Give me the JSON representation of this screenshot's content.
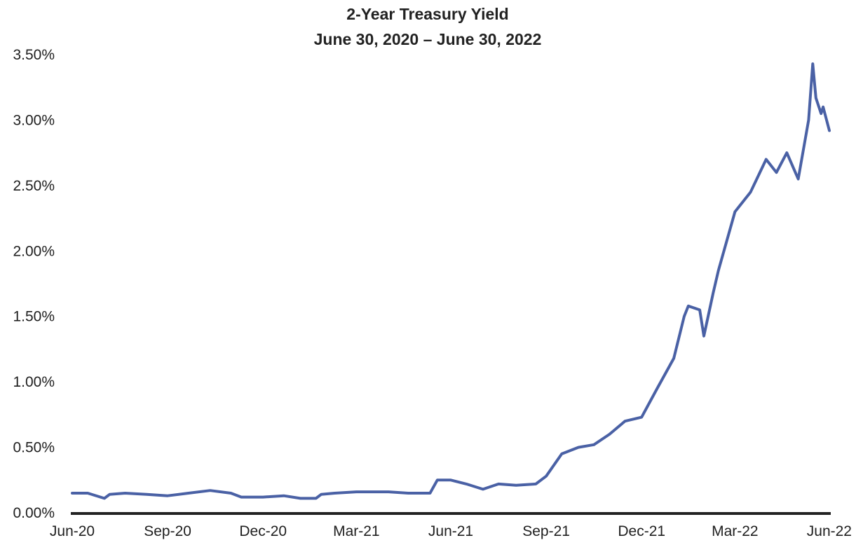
{
  "chart_data": {
    "type": "line",
    "title": "2-Year Treasury Yield",
    "subtitle": "June 30, 2020 – June 30, 2022",
    "xlabel": "",
    "ylabel": "",
    "x_tick_labels": [
      "Jun-20",
      "Sep-20",
      "Dec-20",
      "Mar-21",
      "Jun-21",
      "Sep-21",
      "Dec-21",
      "Mar-22",
      "Jun-22"
    ],
    "x_ticks": [
      "2020-06-30",
      "2020-09-30",
      "2020-12-31",
      "2021-03-31",
      "2021-06-30",
      "2021-09-30",
      "2021-12-31",
      "2022-03-31",
      "2022-06-30"
    ],
    "y_tick_labels": [
      "0.00%",
      "0.50%",
      "1.00%",
      "1.50%",
      "2.00%",
      "2.50%",
      "3.00%",
      "3.50%"
    ],
    "y_ticks": [
      0,
      0.5,
      1.0,
      1.5,
      2.0,
      2.5,
      3.0,
      3.5
    ],
    "xlim": [
      "2020-06-30",
      "2022-06-30"
    ],
    "ylim": [
      0,
      3.5
    ],
    "grid": false,
    "line_color": "#4a61a5",
    "axis_color": "#222222",
    "series": [
      {
        "x": [
          "2020-06-30",
          "2020-07-15",
          "2020-07-31",
          "2020-08-05",
          "2020-08-20",
          "2020-09-10",
          "2020-09-30",
          "2020-10-20",
          "2020-11-10",
          "2020-11-30",
          "2020-12-10",
          "2020-12-31",
          "2021-01-20",
          "2021-02-05",
          "2021-02-20",
          "2021-02-25",
          "2021-03-10",
          "2021-03-31",
          "2021-04-15",
          "2021-05-01",
          "2021-05-20",
          "2021-06-10",
          "2021-06-17",
          "2021-06-30",
          "2021-07-15",
          "2021-07-31",
          "2021-08-15",
          "2021-09-01",
          "2021-09-20",
          "2021-09-30",
          "2021-10-15",
          "2021-10-31",
          "2021-11-15",
          "2021-11-30",
          "2021-12-15",
          "2021-12-31",
          "2022-01-15",
          "2022-01-31",
          "2022-02-10",
          "2022-02-14",
          "2022-02-25",
          "2022-03-01",
          "2022-03-10",
          "2022-03-15",
          "2022-03-31",
          "2022-04-15",
          "2022-04-30",
          "2022-05-10",
          "2022-05-20",
          "2022-05-31",
          "2022-06-10",
          "2022-06-14",
          "2022-06-17",
          "2022-06-22",
          "2022-06-24",
          "2022-06-30"
        ],
        "values": [
          0.15,
          0.15,
          0.11,
          0.14,
          0.15,
          0.14,
          0.13,
          0.15,
          0.17,
          0.15,
          0.12,
          0.12,
          0.13,
          0.11,
          0.11,
          0.14,
          0.15,
          0.16,
          0.16,
          0.16,
          0.15,
          0.15,
          0.25,
          0.25,
          0.22,
          0.18,
          0.22,
          0.21,
          0.22,
          0.28,
          0.45,
          0.5,
          0.52,
          0.6,
          0.7,
          0.73,
          0.95,
          1.18,
          1.5,
          1.58,
          1.55,
          1.35,
          1.68,
          1.85,
          2.3,
          2.45,
          2.7,
          2.6,
          2.75,
          2.55,
          3.0,
          3.43,
          3.17,
          3.05,
          3.1,
          2.92
        ]
      }
    ]
  }
}
